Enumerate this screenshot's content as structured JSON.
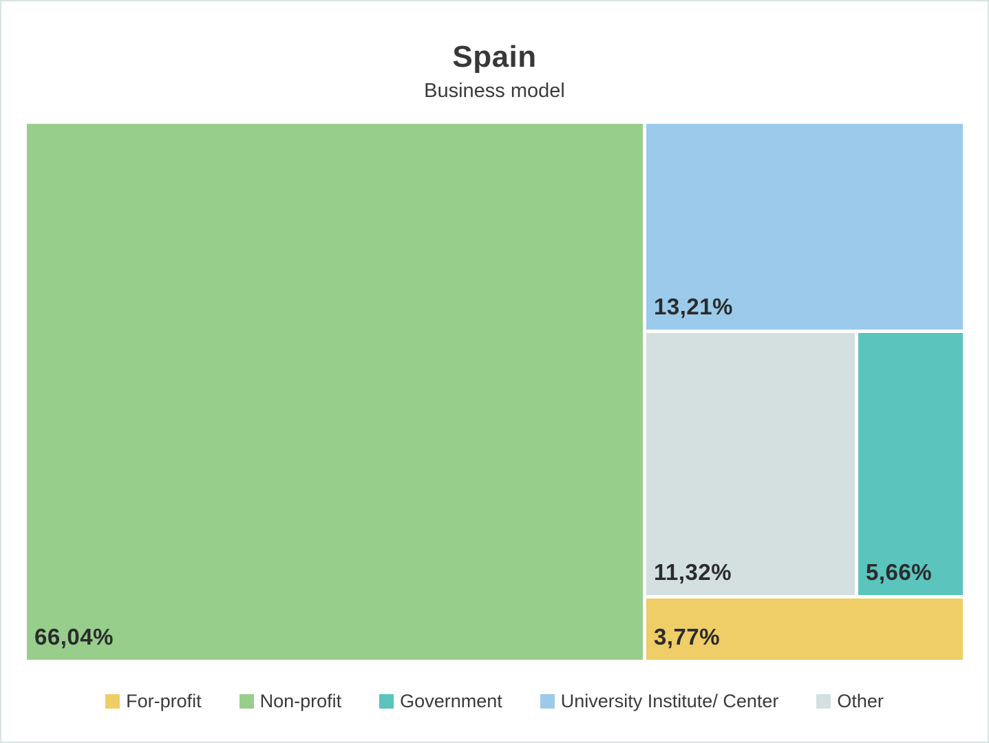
{
  "chart_data": {
    "type": "treemap",
    "title": "Spain",
    "subtitle": "Business model",
    "series": [
      {
        "name": "Non-profit",
        "value": 66.04,
        "label": "66,04%",
        "color": "#97ce8c"
      },
      {
        "name": "University Institute/ Center",
        "value": 13.21,
        "label": "13,21%",
        "color": "#9ccaea"
      },
      {
        "name": "Other",
        "value": 11.32,
        "label": "11,32%",
        "color": "#d4e0e0"
      },
      {
        "name": "Government",
        "value": 5.66,
        "label": "5,66%",
        "color": "#5ac4bd"
      },
      {
        "name": "For-profit",
        "value": 3.77,
        "label": "3,77%",
        "color": "#efcd67"
      }
    ],
    "legend": {
      "position": "bottom",
      "items": [
        {
          "label": "For-profit",
          "color": "#efcd67"
        },
        {
          "label": "Non-profit",
          "color": "#97ce8c"
        },
        {
          "label": "Government",
          "color": "#5ac4bd"
        },
        {
          "label": "University Institute/ Center",
          "color": "#9ccaea"
        },
        {
          "label": "Other",
          "color": "#d4e0e0"
        }
      ]
    },
    "styles": {
      "label_text_color": "#2b2b2d",
      "title_color": "#38383a",
      "frame_border_color": "#d8e4e2",
      "background_color": "#ffffff"
    }
  }
}
